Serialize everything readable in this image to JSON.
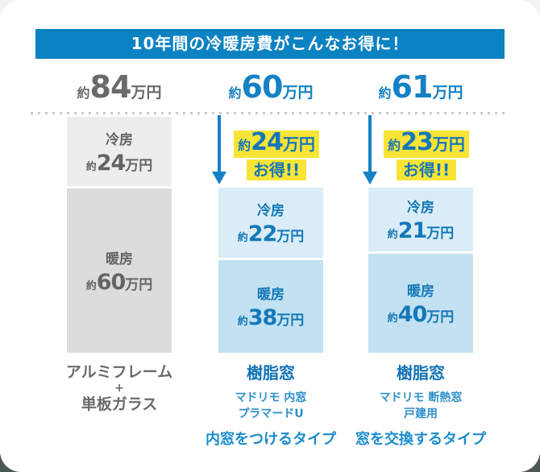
{
  "header": {
    "title": "10年間の冷暖房費がこんなお得に！"
  },
  "columns": [
    {
      "total": {
        "prefix": "約",
        "value": "84",
        "unit": "万円"
      },
      "bars": [
        {
          "label": "冷房",
          "prefix": "約",
          "value": "24",
          "unit": "万円"
        },
        {
          "label": "暖房",
          "prefix": "約",
          "value": "60",
          "unit": "万円"
        }
      ],
      "footer": {
        "lines": [
          "アルミフレーム",
          "+",
          "単板ガラス"
        ]
      }
    },
    {
      "total": {
        "prefix": "約",
        "value": "60",
        "unit": "万円"
      },
      "savings": {
        "prefix": "約",
        "value": "24",
        "unit": "万円",
        "label": "お得!!"
      },
      "bars": [
        {
          "label": "冷房",
          "prefix": "約",
          "value": "22",
          "unit": "万円"
        },
        {
          "label": "暖房",
          "prefix": "約",
          "value": "38",
          "unit": "万円"
        }
      ],
      "footer": {
        "name": "樹脂窓",
        "sub1": "マドリモ 内窓",
        "sub2": "プラマードU",
        "type": "内窓をつけるタイプ"
      }
    },
    {
      "total": {
        "prefix": "約",
        "value": "61",
        "unit": "万円"
      },
      "savings": {
        "prefix": "約",
        "value": "23",
        "unit": "万円",
        "label": "お得!!"
      },
      "bars": [
        {
          "label": "冷房",
          "prefix": "約",
          "value": "21",
          "unit": "万円"
        },
        {
          "label": "暖房",
          "prefix": "約",
          "value": "40",
          "unit": "万円"
        }
      ],
      "footer": {
        "name": "樹脂窓",
        "sub1": "マドリモ 断熱窓",
        "sub2": "戸建用",
        "type": "窓を交換するタイプ"
      }
    }
  ],
  "colors": {
    "header_bg": "#0b82c2",
    "accent_blue": "#1581c5",
    "savings_text_blue": "#1576b8",
    "highlight_yellow": "#f7e437",
    "gray_text": "#6a6a6a",
    "bar_gray_cool": "#ededed",
    "bar_gray_heat": "#dcdcdc",
    "bar_blue_cool": "#daecf7",
    "bar_blue_heat": "#c2e1f1",
    "footer_dark_blue": "#1173b4",
    "footer_mid_blue": "#2e8fca",
    "outer_bottom_dark": "#4b584f"
  },
  "chart_data": {
    "type": "bar",
    "subtype": "stacked",
    "title": "10年間の冷暖房費がこんなお得に！",
    "unit": "万円",
    "categories": [
      "アルミフレーム+単板ガラス",
      "樹脂窓 マドリモ 内窓 プラマードU（内窓をつけるタイプ）",
      "樹脂窓 マドリモ 断熱窓 戸建用（窓を交換するタイプ）"
    ],
    "series": [
      {
        "name": "冷房",
        "values": [
          24,
          22,
          21
        ]
      },
      {
        "name": "暖房",
        "values": [
          60,
          38,
          40
        ]
      }
    ],
    "totals": [
      84,
      60,
      61
    ],
    "savings_vs_first": [
      0,
      24,
      23
    ],
    "legend_position": "none",
    "grid": false,
    "orientation": "vertical"
  }
}
